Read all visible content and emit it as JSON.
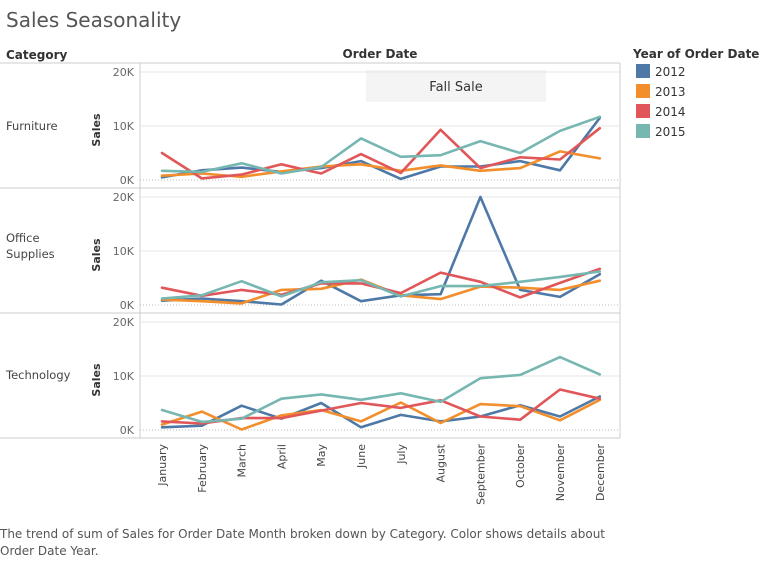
{
  "title": "Sales Seasonality",
  "caption": "The trend of sum of Sales for Order Date Month broken down by Category.  Color shows details about Order Date Year.",
  "headers": {
    "category": "Category",
    "order_date": "Order Date"
  },
  "annotation": "Fall Sale",
  "colors": {
    "2012": "#4e79a7",
    "2013": "#f28e2b",
    "2014": "#e15759",
    "2015": "#76b7b2",
    "grid": "#e6e6e6",
    "zero": "#bbbbbb"
  },
  "chart_data": {
    "type": "line",
    "title": "Sales Seasonality",
    "x": [
      "January",
      "February",
      "March",
      "April",
      "May",
      "June",
      "July",
      "August",
      "September",
      "October",
      "November",
      "December"
    ],
    "xlabel": "Order Date",
    "ylabel": "Sales",
    "y_ticks": [
      "0K",
      "10K",
      "20K"
    ],
    "ylim": [
      0,
      20000
    ],
    "legend": {
      "title": "Year of Order Date",
      "placement": "right",
      "entries": [
        "2012",
        "2013",
        "2014",
        "2015"
      ]
    },
    "panels": [
      {
        "category": "Furniture",
        "series": [
          {
            "name": "2012",
            "values": [
              500,
              1800,
              2300,
              1500,
              2200,
              3500,
              200,
              2500,
              2500,
              3500,
              1800,
              11500
            ]
          },
          {
            "name": "2013",
            "values": [
              800,
              1200,
              600,
              1600,
              2500,
              2900,
              1700,
              2700,
              1700,
              2200,
              5300,
              4000
            ]
          },
          {
            "name": "2014",
            "values": [
              5000,
              300,
              1000,
              2900,
              1200,
              4800,
              1300,
              9300,
              2200,
              4200,
              3800,
              9600
            ]
          },
          {
            "name": "2015",
            "values": [
              1700,
              1500,
              3100,
              1200,
              2400,
              7700,
              4300,
              4600,
              7200,
              5000,
              9100,
              11700
            ]
          }
        ]
      },
      {
        "category": "Office\nSupplies",
        "series": [
          {
            "name": "2012",
            "values": [
              800,
              1200,
              700,
              100,
              4500,
              700,
              1800,
              2000,
              20000,
              2800,
              1500,
              5700
            ]
          },
          {
            "name": "2013",
            "values": [
              1000,
              700,
              300,
              2800,
              3000,
              4700,
              1800,
              1100,
              3400,
              3200,
              2800,
              4500
            ]
          },
          {
            "name": "2014",
            "values": [
              3200,
              1700,
              2800,
              1900,
              4000,
              4000,
              2200,
              6000,
              4300,
              1400,
              4100,
              6700
            ]
          },
          {
            "name": "2015",
            "values": [
              1200,
              1800,
              4400,
              1600,
              4200,
              4600,
              1600,
              3500,
              3500,
              4300,
              5200,
              6200
            ]
          }
        ]
      },
      {
        "category": "Technology",
        "series": [
          {
            "name": "2012",
            "values": [
              500,
              800,
              4500,
              2100,
              5000,
              500,
              2800,
              1600,
              2500,
              4600,
              2500,
              6200
            ]
          },
          {
            "name": "2013",
            "values": [
              1000,
              3400,
              100,
              2700,
              3700,
              1600,
              5100,
              1300,
              4800,
              4400,
              1800,
              5600
            ]
          },
          {
            "name": "2014",
            "values": [
              1600,
              1200,
              2200,
              2200,
              3600,
              5000,
              4100,
              5500,
              2500,
              1900,
              7500,
              5800
            ]
          },
          {
            "name": "2015",
            "values": [
              3700,
              1500,
              2100,
              5800,
              6600,
              5600,
              6800,
              5200,
              9600,
              10200,
              13500,
              10300
            ]
          }
        ]
      }
    ]
  }
}
